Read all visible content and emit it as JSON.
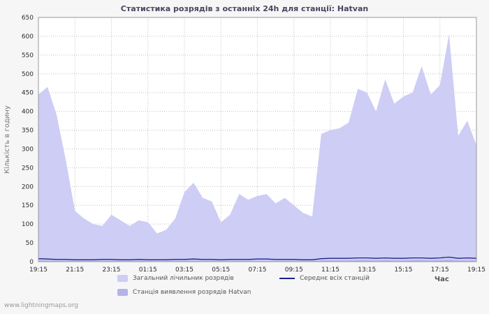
{
  "watermark": "www.lightningmaps.org",
  "chart_data": {
    "type": "area",
    "title": "Статистика розрядів з останніх 24h для станції: Hatvan",
    "xlabel": "Час",
    "ylabel": "Кількість в годину",
    "ylim": [
      0,
      650
    ],
    "ytick_step": 50,
    "grid": "dotted",
    "legend_position": "bottom",
    "x_tick_labels": [
      "19:15",
      "21:15",
      "23:15",
      "01:15",
      "03:15",
      "05:15",
      "07:15",
      "09:15",
      "11:15",
      "13:15",
      "15:15",
      "17:15",
      "19:15"
    ],
    "x_span_hours": 24,
    "colors": {
      "total_area": "#cdcdf5",
      "station_area": "#b3b3ea",
      "average_line": "#20208a",
      "plot_background": "#ffffff",
      "grid_line": "#c0c0c0",
      "border": "#999999"
    },
    "series": [
      {
        "name": "Загальний лічильник розрядів",
        "type": "area",
        "color": "#cdcdf5",
        "values": [
          445,
          465,
          390,
          270,
          135,
          115,
          100,
          95,
          125,
          110,
          95,
          110,
          105,
          75,
          85,
          115,
          185,
          210,
          170,
          160,
          105,
          125,
          180,
          165,
          175,
          180,
          155,
          170,
          150,
          130,
          120,
          340,
          350,
          355,
          370,
          460,
          450,
          400,
          485,
          420,
          440,
          450,
          520,
          445,
          470,
          605,
          335,
          375,
          310
        ]
      },
      {
        "name": "Станція виявлення розрядів Hatvan",
        "type": "area",
        "color": "#b3b3ea",
        "values": [
          3,
          3,
          2,
          2,
          2,
          2,
          2,
          2,
          2,
          2,
          2,
          2,
          2,
          1,
          2,
          2,
          2,
          3,
          2,
          2,
          2,
          2,
          2,
          2,
          2,
          2,
          2,
          2,
          2,
          2,
          2,
          3,
          3,
          3,
          3,
          4,
          4,
          3,
          4,
          3,
          3,
          4,
          4,
          3,
          4,
          5,
          3,
          3,
          3
        ]
      },
      {
        "name": "Середнє всіх станцій",
        "type": "line",
        "color": "#20208a",
        "values": [
          8,
          7,
          6,
          6,
          5,
          5,
          5,
          6,
          6,
          5,
          5,
          6,
          5,
          5,
          5,
          6,
          6,
          7,
          6,
          6,
          5,
          6,
          6,
          6,
          7,
          7,
          6,
          6,
          6,
          5,
          5,
          8,
          9,
          9,
          9,
          10,
          10,
          9,
          10,
          9,
          9,
          10,
          10,
          9,
          10,
          12,
          9,
          10,
          9
        ]
      }
    ]
  }
}
